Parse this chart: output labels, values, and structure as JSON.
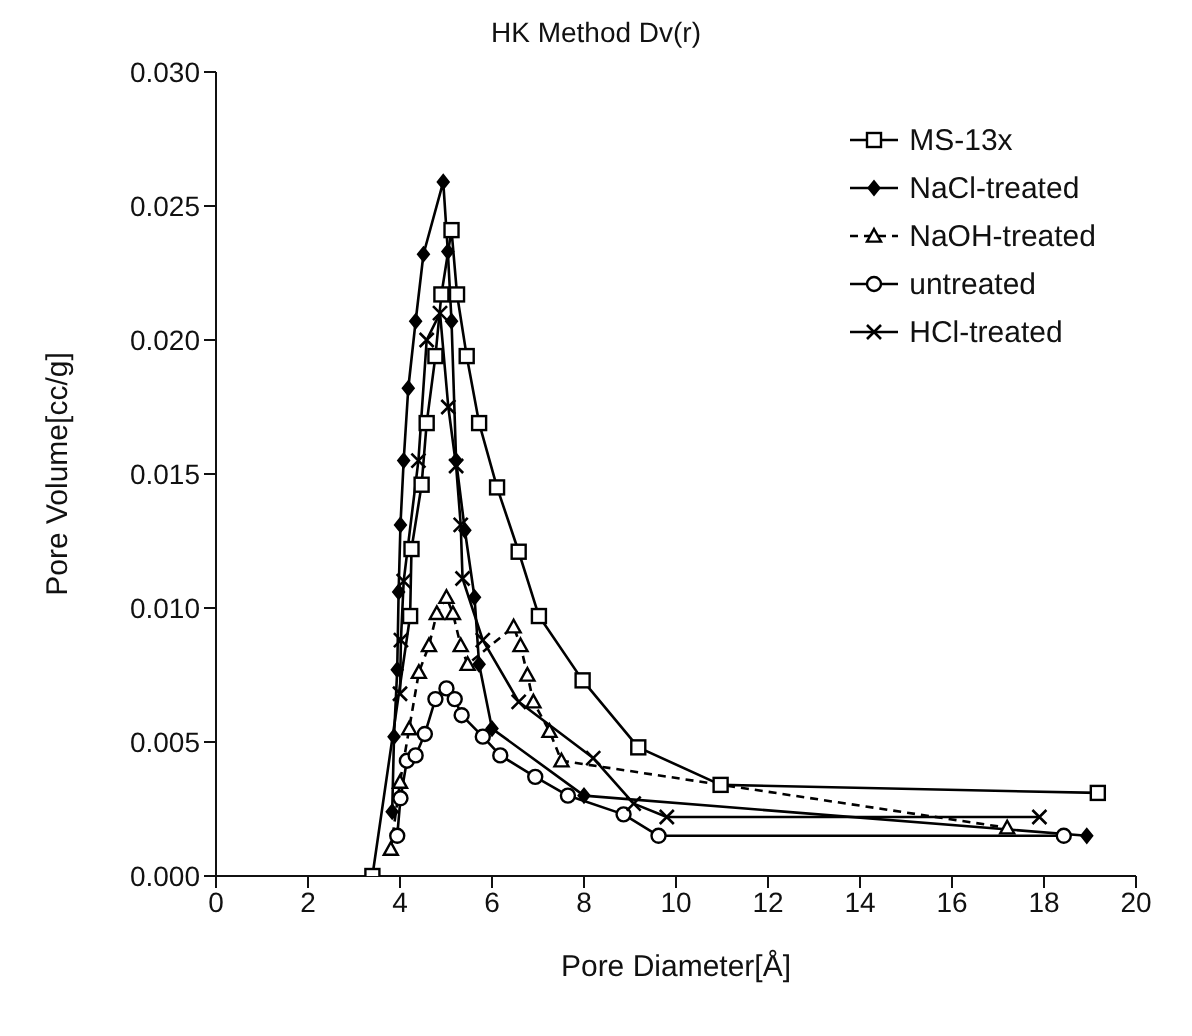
{
  "chart_data": {
    "type": "line",
    "title": "HK Method Dv(r)",
    "xlabel": "Pore Diameter[Å]",
    "ylabel": "Pore Volume[cc/g]",
    "xlim": [
      0,
      20
    ],
    "xticks": [
      0,
      2,
      4,
      6,
      8,
      10,
      12,
      14,
      16,
      18,
      20
    ],
    "ylim": [
      0,
      0.03
    ],
    "yticks": [
      {
        "value": 0,
        "label": "0.000"
      },
      {
        "value": 0.005,
        "label": "0.005"
      },
      {
        "value": 0.01,
        "label": "0.010"
      },
      {
        "value": 0.015,
        "label": "0.015"
      },
      {
        "value": 0.02,
        "label": "0.020"
      },
      {
        "value": 0.025,
        "label": "0.025"
      },
      {
        "value": 0.03,
        "label": "0.030"
      }
    ],
    "grid": false,
    "legend": "top right",
    "line_style": "solid",
    "series": [
      {
        "name": "MS-13x",
        "color": "#000000",
        "marker": "square",
        "x": [
          3.4,
          4.22,
          4.25,
          4.47,
          4.58,
          4.77,
          4.9,
          5.12,
          5.24,
          5.45,
          5.72,
          6.11,
          6.58,
          7.02,
          7.97,
          9.18,
          10.97,
          19.17
        ],
        "values": [
          0,
          0.0097,
          0.0122,
          0.0146,
          0.0169,
          0.0194,
          0.0217,
          0.0241,
          0.0217,
          0.0194,
          0.0169,
          0.0145,
          0.0121,
          0.0097,
          0.0073,
          0.0048,
          0.0034,
          0.0031
        ]
      },
      {
        "name": "NaCl-treated",
        "color": "#000000",
        "marker": "diamond",
        "x": [
          3.83,
          3.87,
          3.94,
          3.97,
          4.01,
          4.08,
          4.18,
          4.34,
          4.51,
          4.94,
          5.04,
          5.12,
          5.22,
          5.41,
          5.62,
          5.72,
          6.0,
          8.0,
          18.93
        ],
        "values": [
          0.0024,
          0.0052,
          0.0077,
          0.0106,
          0.0131,
          0.0155,
          0.0182,
          0.0207,
          0.0232,
          0.0259,
          0.0233,
          0.0207,
          0.0155,
          0.0129,
          0.0104,
          0.0079,
          0.0055,
          0.003,
          0.0015
        ]
      },
      {
        "name": "NaOH-treated",
        "color": "#000000",
        "marker": "triangle",
        "line_style": "dashed",
        "x": [
          3.8,
          4.0,
          4.2,
          4.41,
          4.63,
          4.8,
          5.01,
          5.15,
          5.32,
          5.47,
          6.47,
          6.62,
          6.77,
          6.9,
          7.25,
          7.51,
          17.2
        ],
        "values": [
          0.001,
          0.0035,
          0.0055,
          0.0076,
          0.0086,
          0.0098,
          0.0104,
          0.0098,
          0.0086,
          0.0079,
          0.0093,
          0.0086,
          0.0075,
          0.0065,
          0.0054,
          0.0043,
          0.0018
        ]
      },
      {
        "name": "untreated",
        "color": "#000000",
        "marker": "circle",
        "x": [
          3.94,
          4.01,
          4.15,
          4.34,
          4.54,
          4.77,
          5.01,
          5.19,
          5.34,
          5.8,
          6.18,
          6.94,
          7.65,
          8.86,
          9.62,
          18.43
        ],
        "values": [
          0.0015,
          0.0029,
          0.0043,
          0.0045,
          0.0053,
          0.0066,
          0.007,
          0.0066,
          0.006,
          0.0052,
          0.0045,
          0.0037,
          0.003,
          0.0023,
          0.0015,
          0.0015
        ]
      },
      {
        "name": "HCl-treated",
        "color": "#000000",
        "marker": "cross",
        "x": [
          4.0,
          4.02,
          4.08,
          4.4,
          4.58,
          4.87,
          5.05,
          5.22,
          5.32,
          5.36,
          5.8,
          6.58,
          8.2,
          9.08,
          9.8,
          17.9
        ],
        "values": [
          0.0068,
          0.0088,
          0.011,
          0.0155,
          0.02,
          0.021,
          0.0175,
          0.0153,
          0.0131,
          0.0111,
          0.0088,
          0.0065,
          0.0044,
          0.0027,
          0.0022,
          0.0022
        ]
      }
    ]
  }
}
